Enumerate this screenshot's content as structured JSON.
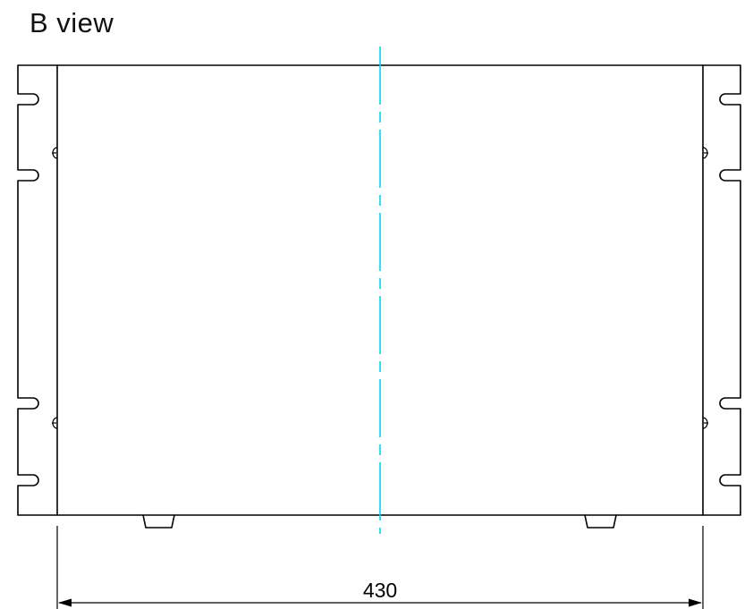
{
  "view_title": "B view",
  "dimension": {
    "width_label": "430"
  },
  "colors": {
    "outline": "#000000",
    "centerline": "#00d8f0"
  }
}
